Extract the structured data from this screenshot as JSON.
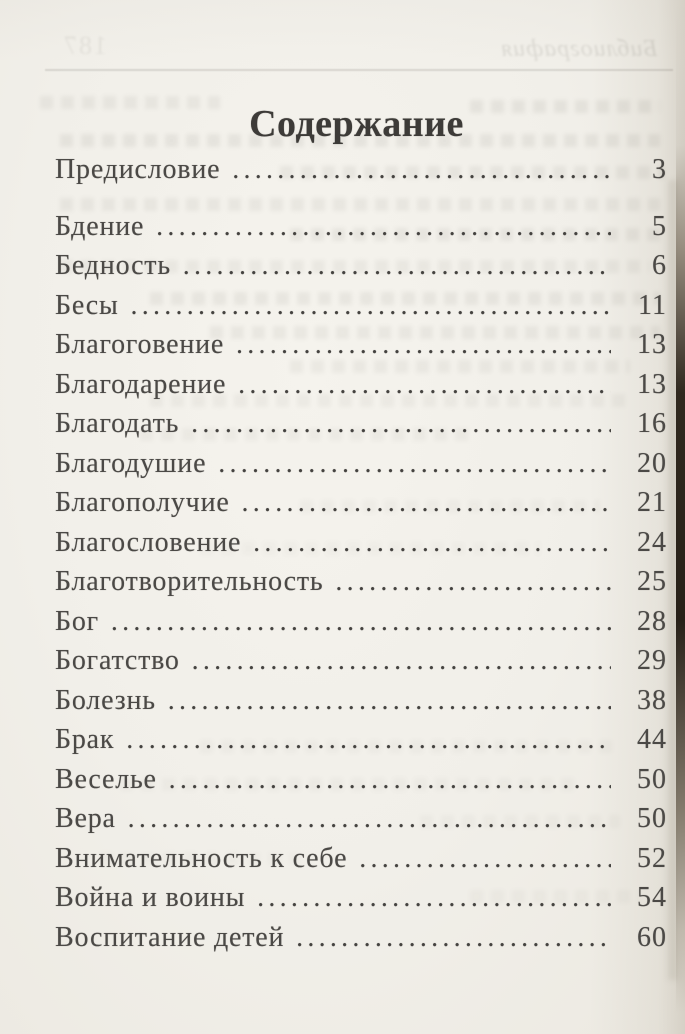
{
  "document": {
    "title": "Содержание",
    "bleedthrough": {
      "header_page_number": "187",
      "header_text": "Библиография"
    },
    "toc_entries": [
      {
        "label": "Предисловие",
        "page": "3"
      },
      {
        "label": "Бдение",
        "page": "5"
      },
      {
        "label": "Бедность",
        "page": "6"
      },
      {
        "label": "Бесы",
        "page": "11"
      },
      {
        "label": "Благоговение",
        "page": "13"
      },
      {
        "label": "Благодарение",
        "page": "13"
      },
      {
        "label": "Благодать",
        "page": "16"
      },
      {
        "label": "Благодушие",
        "page": "20"
      },
      {
        "label": "Благополучие",
        "page": "21"
      },
      {
        "label": "Благословение",
        "page": "24"
      },
      {
        "label": "Благотворительность",
        "page": "25"
      },
      {
        "label": "Бог",
        "page": "28"
      },
      {
        "label": "Богатство",
        "page": "29"
      },
      {
        "label": "Болезнь",
        "page": "38"
      },
      {
        "label": "Брак",
        "page": "44"
      },
      {
        "label": "Веселье",
        "page": "50"
      },
      {
        "label": "Вера",
        "page": "50"
      },
      {
        "label": "Внимательность к себе",
        "page": "52"
      },
      {
        "label": "Война и воины",
        "page": "54"
      },
      {
        "label": "Воспитание детей",
        "page": "60"
      }
    ]
  }
}
